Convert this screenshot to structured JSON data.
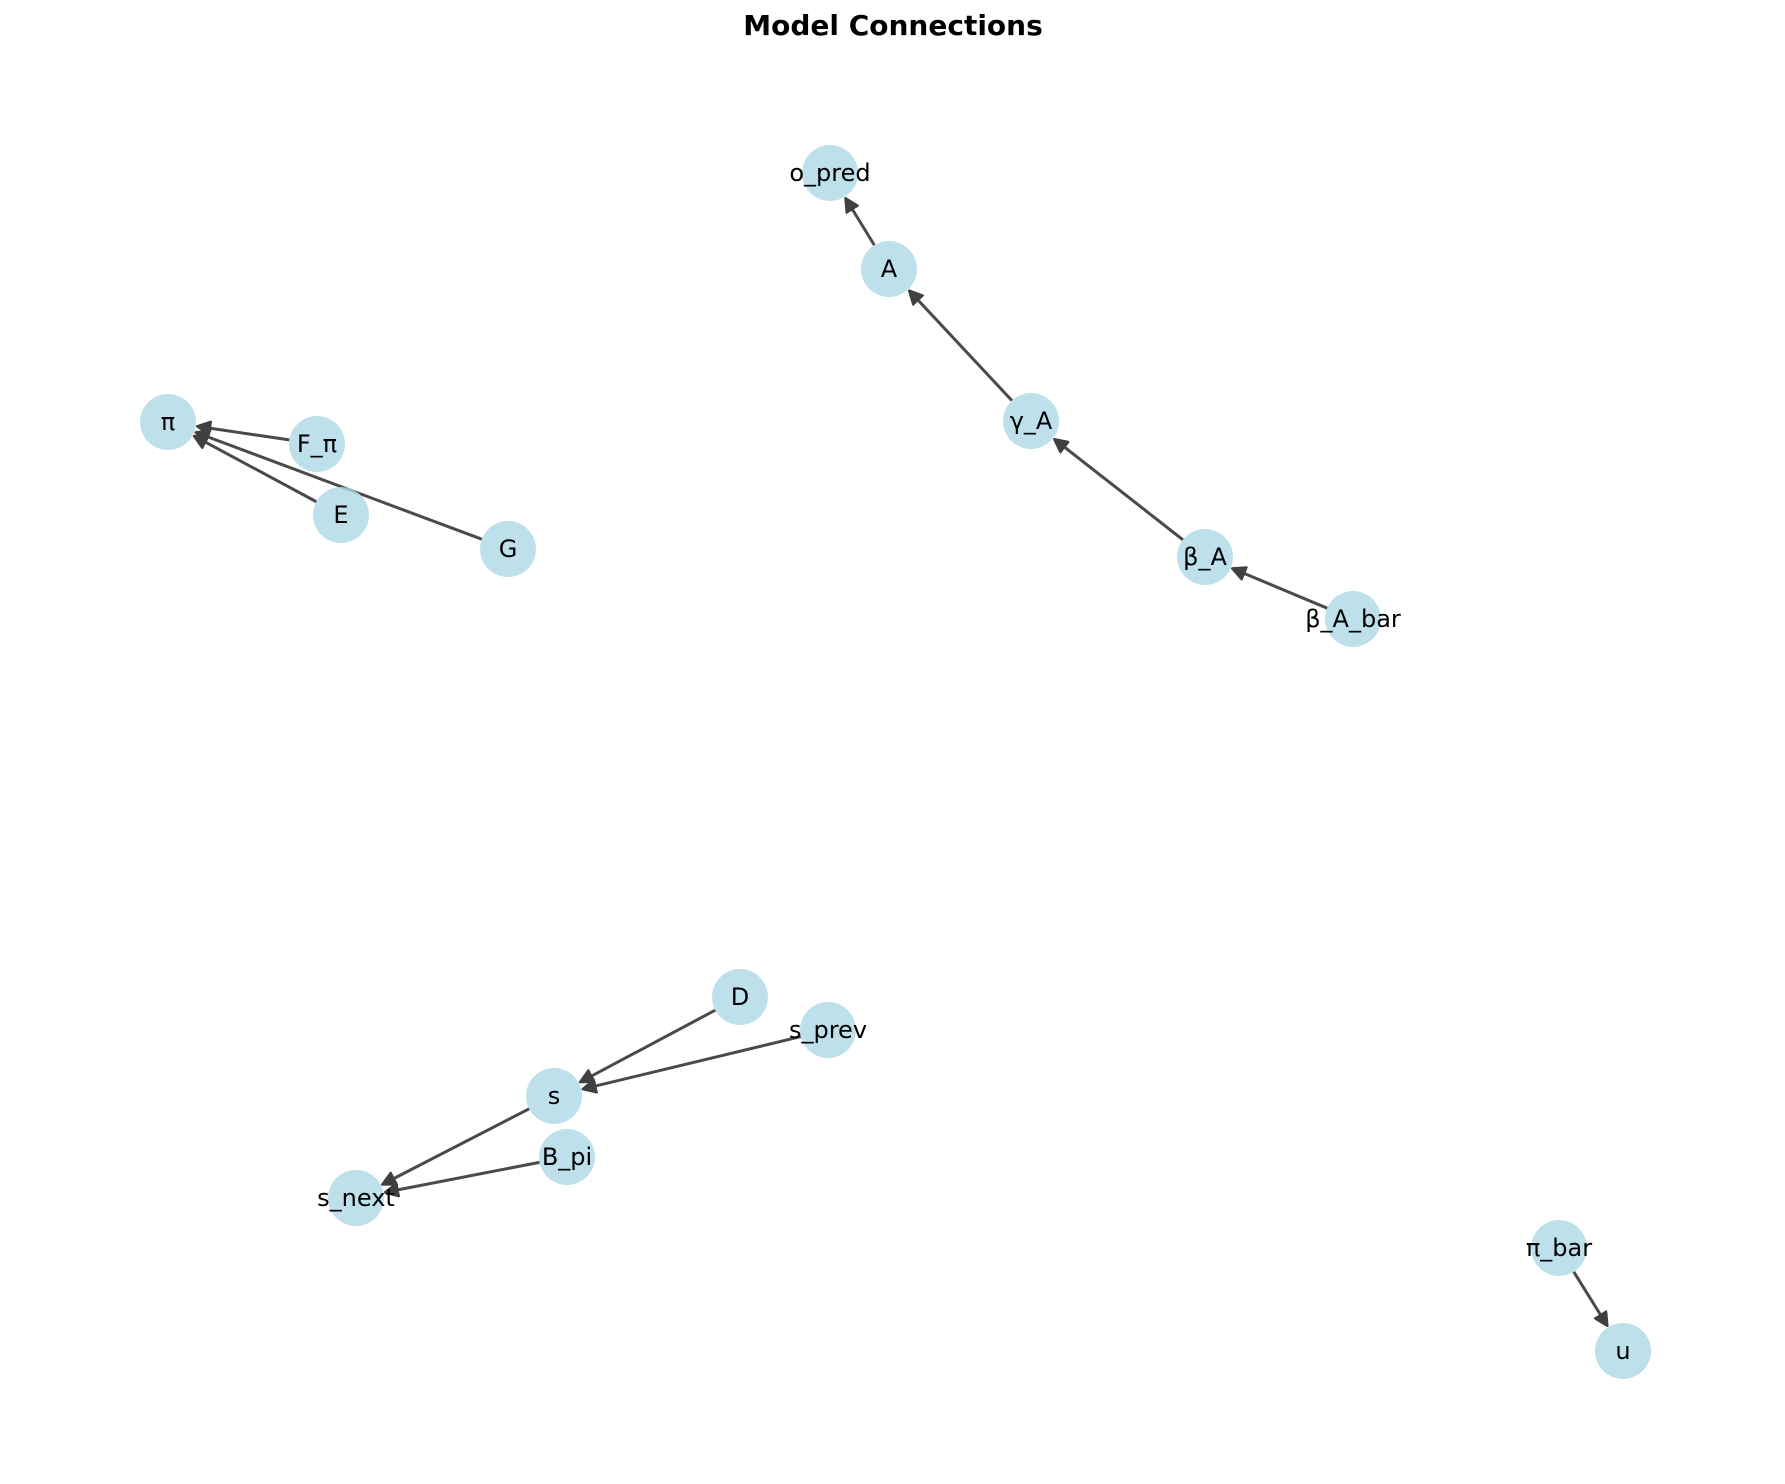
{
  "title": "Model Connections",
  "style": {
    "node_color": "#add8e6",
    "edge_color": "#404040",
    "text_color": "#000000"
  },
  "nodes": [
    {
      "id": "o_pred",
      "label": "o_pred"
    },
    {
      "id": "A",
      "label": "A"
    },
    {
      "id": "gamma_A",
      "label": "γ_A"
    },
    {
      "id": "beta_A",
      "label": "β_A"
    },
    {
      "id": "beta_A_bar",
      "label": "β_A_bar"
    },
    {
      "id": "pi",
      "label": "π"
    },
    {
      "id": "F_pi",
      "label": "F_π"
    },
    {
      "id": "E",
      "label": "E"
    },
    {
      "id": "G",
      "label": "G"
    },
    {
      "id": "D",
      "label": "D"
    },
    {
      "id": "s_prev",
      "label": "s_prev"
    },
    {
      "id": "s",
      "label": "s"
    },
    {
      "id": "B_pi",
      "label": "B_pi"
    },
    {
      "id": "s_next",
      "label": "s_next"
    },
    {
      "id": "pi_bar",
      "label": "π_bar"
    },
    {
      "id": "u",
      "label": "u"
    }
  ],
  "edges": [
    {
      "from": "A",
      "to": "o_pred"
    },
    {
      "from": "gamma_A",
      "to": "A"
    },
    {
      "from": "beta_A",
      "to": "gamma_A"
    },
    {
      "from": "beta_A_bar",
      "to": "beta_A"
    },
    {
      "from": "F_pi",
      "to": "pi"
    },
    {
      "from": "E",
      "to": "pi"
    },
    {
      "from": "G",
      "to": "pi"
    },
    {
      "from": "D",
      "to": "s"
    },
    {
      "from": "s_prev",
      "to": "s"
    },
    {
      "from": "s",
      "to": "s_next"
    },
    {
      "from": "B_pi",
      "to": "s_next"
    },
    {
      "from": "pi_bar",
      "to": "u"
    }
  ]
}
